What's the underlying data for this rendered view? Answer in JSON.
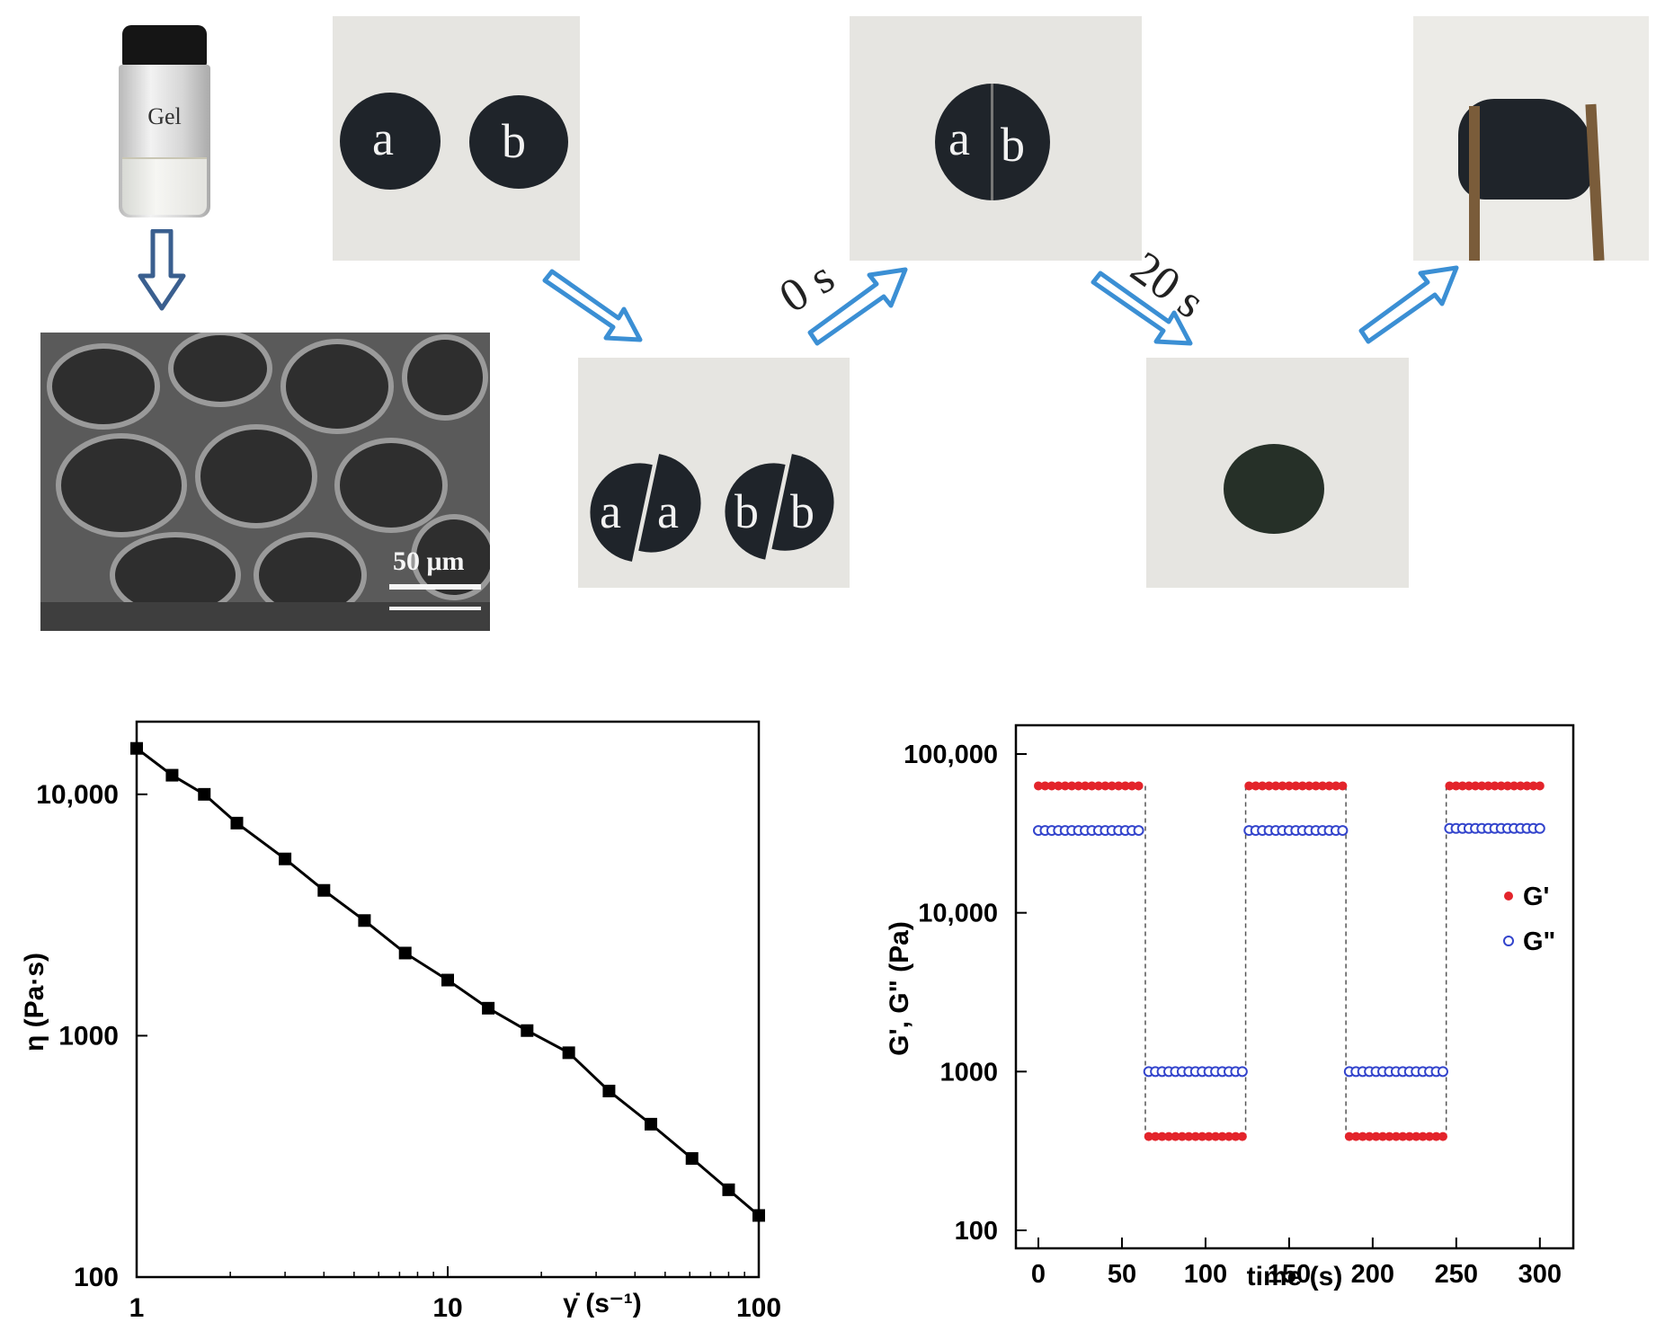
{
  "photos": {
    "vial_label": "Gel",
    "sem_scale": "50 μm",
    "disks_top": [
      "a",
      "b"
    ],
    "disks_joined": [
      "a",
      "b"
    ],
    "disks_cut": [
      "a",
      "a",
      "b",
      "b"
    ],
    "time_labels": [
      "0 s",
      "20 s"
    ]
  },
  "colors": {
    "arrow": "#3b8fd4",
    "vial_arrow": "#3a5f8f",
    "disk": "#1f242a",
    "g_prime": "#e3242b",
    "g_double_prime": "#3344cc"
  },
  "chart_data": [
    {
      "type": "scatter",
      "title": "",
      "xlabel": "γ̇ (s⁻¹)",
      "ylabel": "η (Pa·s)",
      "xscale": "log",
      "yscale": "log",
      "xlim": [
        1,
        100
      ],
      "ylim": [
        100,
        20000
      ],
      "x_ticks": [
        "1",
        "10",
        "100"
      ],
      "y_ticks": [
        "100",
        "1000",
        "10,000"
      ],
      "fit_line": true,
      "series": [
        {
          "marker": "filled-square",
          "x": [
            1,
            1.3,
            1.65,
            2.1,
            3,
            4,
            5.4,
            7.3,
            10,
            13.5,
            18,
            24.5,
            33,
            45,
            61,
            80,
            100
          ],
          "y": [
            15500,
            12000,
            10000,
            7600,
            5400,
            4000,
            3000,
            2200,
            1700,
            1300,
            1050,
            850,
            590,
            430,
            310,
            230,
            180
          ]
        }
      ]
    },
    {
      "type": "scatter",
      "title": "",
      "xlabel": "time (s)",
      "ylabel": "G', G\" (Pa)",
      "yscale": "log",
      "xlim": [
        0,
        320
      ],
      "ylim": [
        100,
        100000
      ],
      "x_ticks": [
        "0",
        "50",
        "100",
        "150",
        "200",
        "250",
        "300"
      ],
      "y_ticks": [
        "100",
        "1000",
        "10,000",
        "100,000"
      ],
      "legend_position": "right",
      "step_transitions": [
        64,
        124,
        184,
        244
      ],
      "series": [
        {
          "name": "G'",
          "marker": "filled-circle",
          "segments": [
            {
              "x": [
                0,
                60
              ],
              "y": 63000
            },
            {
              "x": [
                66,
                122
              ],
              "y": 390
            },
            {
              "x": [
                126,
                182
              ],
              "y": 63000
            },
            {
              "x": [
                186,
                242
              ],
              "y": 390
            },
            {
              "x": [
                246,
                300
              ],
              "y": 63000
            }
          ]
        },
        {
          "name": "G\"",
          "marker": "open-circle",
          "segments": [
            {
              "x": [
                0,
                60
              ],
              "y": 33000
            },
            {
              "x": [
                66,
                122
              ],
              "y": 1000
            },
            {
              "x": [
                126,
                182
              ],
              "y": 33000
            },
            {
              "x": [
                186,
                242
              ],
              "y": 1000
            },
            {
              "x": [
                246,
                300
              ],
              "y": 34000
            }
          ]
        }
      ]
    }
  ]
}
